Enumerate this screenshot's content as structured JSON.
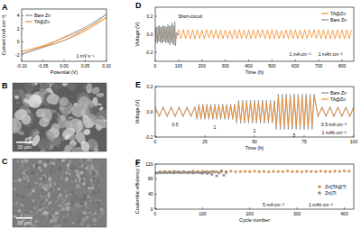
{
  "chart_data": [
    {
      "type": "line",
      "title": "A",
      "x_label": "Potential (V)",
      "y_label": "Current (mA cm⁻²)",
      "x": [
        -0.1,
        -0.08,
        -0.06,
        -0.04,
        -0.02,
        0,
        0.02,
        0.04,
        0.06,
        0.08,
        0.1,
        0.1,
        0.08,
        0.06,
        0.04,
        0.02,
        0,
        -0.02,
        -0.04,
        -0.06,
        -0.08,
        -0.1
      ],
      "series": [
        {
          "name": "Bare Zn",
          "color": "#8c8c8c",
          "values": [
            -1.9,
            -1.5,
            -1.1,
            -0.7,
            -0.3,
            0.2,
            0.8,
            1.5,
            2.3,
            3.2,
            4.2,
            4.2,
            3.4,
            2.6,
            1.9,
            1.3,
            0.7,
            0.1,
            -0.5,
            -1.0,
            -1.5,
            -1.9
          ]
        },
        {
          "name": "TA@Zn",
          "color": "#f28e2b",
          "values": [
            -1.5,
            -1.2,
            -0.9,
            -0.6,
            -0.2,
            0.2,
            0.7,
            1.3,
            2.0,
            2.8,
            3.7,
            3.7,
            3.0,
            2.3,
            1.7,
            1.1,
            0.6,
            0.1,
            -0.4,
            -0.8,
            -1.2,
            -1.5
          ]
        }
      ],
      "xlim": [
        -0.1,
        0.1
      ],
      "xticks": [
        {
          "value": -0.1,
          "label": "-0.10"
        },
        -0.05,
        {
          "value": 0,
          "label": "0.00"
        },
        0.05,
        {
          "value": 0.1,
          "label": "0.10"
        }
      ],
      "ylim": [
        -3,
        5
      ],
      "yticks": [
        -2,
        0,
        2,
        4
      ],
      "legend": "upper left",
      "annotations": [
        {
          "text": "1 mV s⁻¹",
          "x": 0.05,
          "y": -2.2
        }
      ]
    },
    {
      "type": "line",
      "title": "D",
      "x_label": "Time (h)",
      "y_label": "Voltage (V)",
      "series": [
        {
          "name": "TA@Zn",
          "color": "#f28e2b",
          "x": [
            0,
            10,
            20,
            30,
            40,
            50,
            60,
            70,
            80,
            90,
            100,
            110,
            120,
            130,
            140,
            150,
            160,
            170,
            180,
            190,
            200,
            210,
            220,
            230,
            240,
            250,
            260,
            270,
            280,
            290,
            300,
            310,
            320,
            330,
            340,
            350,
            360,
            370,
            380,
            390,
            400,
            410,
            420,
            430,
            440,
            450,
            460,
            470,
            480,
            490,
            500,
            510,
            520,
            530,
            540,
            550,
            560,
            570,
            580,
            590,
            600,
            610,
            620,
            630,
            640,
            650,
            660,
            670,
            680,
            690,
            700,
            710,
            720,
            730,
            740,
            750,
            760,
            770,
            780,
            790,
            800,
            810,
            820,
            830,
            840
          ],
          "values": [
            0.06,
            -0.06,
            0.05,
            -0.05,
            0.05,
            -0.05,
            0.05,
            -0.05,
            0.05,
            -0.05,
            0.05,
            -0.05,
            0.05,
            -0.05,
            0.05,
            -0.05,
            0.05,
            -0.05,
            0.05,
            -0.05,
            0.05,
            -0.05,
            0.05,
            -0.04,
            0.05,
            -0.05,
            0.05,
            -0.05,
            0.05,
            -0.05,
            0.05,
            -0.05,
            0.04,
            -0.05,
            0.05,
            -0.05,
            0.05,
            -0.05,
            0.05,
            -0.05,
            0.05,
            -0.05,
            0.05,
            -0.05,
            0.05,
            -0.04,
            0.05,
            -0.05,
            0.05,
            -0.05,
            0.05,
            -0.05,
            0.05,
            -0.05,
            0.04,
            -0.05,
            0.05,
            -0.05,
            0.05,
            -0.05,
            0.05,
            -0.05,
            0.05,
            -0.05,
            0.05,
            -0.05,
            0.05,
            -0.04,
            0.05,
            -0.05,
            0.05,
            -0.05,
            0.05,
            -0.05,
            0.05,
            -0.05,
            0.05,
            -0.05,
            0.05,
            -0.05,
            0.05,
            -0.05,
            0.05,
            -0.05,
            0.05
          ]
        },
        {
          "name": "Bare Zn",
          "color": "#8c8c8c",
          "x": [
            0,
            3,
            6,
            9,
            12,
            15,
            18,
            21,
            24,
            27,
            30,
            33,
            36,
            39,
            42,
            45,
            48,
            51,
            54,
            57,
            60,
            63,
            66,
            69,
            72,
            75,
            78,
            81,
            84,
            87,
            90,
            93,
            96,
            99
          ],
          "values": [
            0.09,
            -0.09,
            0.08,
            -0.1,
            0.09,
            -0.08,
            0.1,
            -0.09,
            0.08,
            -0.1,
            0.09,
            -0.09,
            0.1,
            -0.08,
            0.09,
            -0.1,
            0.08,
            -0.09,
            0.11,
            -0.1,
            0.09,
            -0.12,
            0.1,
            -0.09,
            0.13,
            -0.11,
            0.1,
            -0.12,
            0.14,
            -0.13,
            0.02,
            -0.01,
            0.01,
            -0.01
          ]
        }
      ],
      "xlim": [
        0,
        850
      ],
      "xticks": [
        0,
        100,
        200,
        300,
        400,
        500,
        600,
        700,
        800
      ],
      "ylim": [
        -0.3,
        0.3
      ],
      "yticks": [
        -0.2,
        {
          "value": 0,
          "label": "0.0"
        },
        0.2
      ],
      "legend": "upper right",
      "annotations": [
        {
          "text": "Short-circuit",
          "x": 150,
          "y": 0.2
        },
        {
          "text": "1 mA cm⁻²",
          "x": 620,
          "y": -0.22
        },
        {
          "text": "1 mAh cm⁻²",
          "x": 750,
          "y": -0.22
        }
      ]
    },
    {
      "type": "line",
      "title": "E",
      "x_label": "Time (h)",
      "y_label": "Voltage (V)",
      "x": [
        0,
        2,
        4,
        6,
        8,
        10,
        12,
        14,
        16,
        18,
        20,
        21,
        22,
        23,
        24,
        25,
        26,
        27,
        28,
        29,
        30,
        31,
        32,
        33,
        34,
        35,
        36,
        37,
        38,
        39,
        40,
        41,
        42,
        43,
        44,
        45,
        46,
        47,
        48,
        49,
        50,
        51,
        52,
        53,
        54,
        55,
        56,
        57,
        58,
        59,
        60,
        61,
        62,
        63,
        64,
        65,
        66,
        67,
        68,
        69,
        70,
        71,
        72,
        73,
        74,
        75,
        76,
        77,
        78,
        79,
        80,
        82,
        84,
        86,
        88,
        90,
        92,
        94,
        96,
        98,
        100
      ],
      "series": [
        {
          "name": "Bare Zn",
          "color": "#8c8c8c",
          "values": [
            0.04,
            -0.04,
            0.04,
            -0.04,
            0.04,
            -0.04,
            0.04,
            -0.04,
            0.04,
            -0.04,
            0.04,
            -0.06,
            0.06,
            -0.06,
            0.06,
            -0.06,
            0.06,
            -0.06,
            0.06,
            -0.06,
            0.06,
            -0.06,
            0.06,
            -0.06,
            0.06,
            -0.06,
            0.06,
            -0.06,
            0.06,
            -0.06,
            0.06,
            -0.09,
            0.09,
            -0.09,
            0.09,
            -0.09,
            0.09,
            -0.09,
            0.09,
            -0.09,
            0.09,
            -0.09,
            0.09,
            -0.09,
            0.09,
            -0.09,
            0.09,
            -0.09,
            0.09,
            -0.09,
            0.09,
            -0.14,
            0.14,
            -0.14,
            0.14,
            -0.14,
            0.14,
            -0.14,
            0.14,
            -0.14,
            0.14,
            -0.14,
            0.14,
            -0.14,
            0.14,
            -0.14,
            0.14,
            -0.14,
            0.14,
            -0.14,
            0.14,
            -0.04,
            0.04,
            -0.04,
            0.04,
            -0.04,
            0.04,
            -0.04,
            0.04,
            -0.04,
            0.04
          ]
        },
        {
          "name": "TA@Zn",
          "color": "#f28e2b",
          "values": [
            0.03,
            -0.03,
            0.03,
            -0.03,
            0.03,
            -0.03,
            0.03,
            -0.03,
            0.03,
            -0.03,
            0.03,
            -0.045,
            0.045,
            -0.045,
            0.045,
            -0.045,
            0.045,
            -0.045,
            0.045,
            -0.045,
            0.045,
            -0.045,
            0.045,
            -0.045,
            0.045,
            -0.045,
            0.045,
            -0.045,
            0.045,
            -0.045,
            0.045,
            -0.07,
            0.07,
            -0.07,
            0.07,
            -0.07,
            0.07,
            -0.07,
            0.07,
            -0.07,
            0.07,
            -0.07,
            0.07,
            -0.07,
            0.07,
            -0.07,
            0.07,
            -0.07,
            0.07,
            -0.07,
            0.07,
            -0.11,
            0.11,
            -0.11,
            0.11,
            -0.11,
            0.11,
            -0.11,
            0.11,
            -0.11,
            0.11,
            -0.11,
            0.11,
            -0.11,
            0.11,
            -0.11,
            0.11,
            -0.11,
            0.11,
            -0.11,
            0.11,
            -0.03,
            0.03,
            -0.03,
            0.03,
            -0.03,
            0.03,
            -0.03,
            0.03,
            -0.03,
            0.03
          ]
        }
      ],
      "xlim": [
        0,
        100
      ],
      "xticks": [
        0,
        25,
        50,
        75,
        100
      ],
      "ylim": [
        -0.2,
        0.2
      ],
      "yticks": [
        -0.2,
        {
          "value": 0,
          "label": "0.0"
        },
        0.2
      ],
      "legend": "upper right",
      "annotations": [
        {
          "text": "0.5",
          "x": 10,
          "y": -0.1
        },
        {
          "text": "1",
          "x": 30,
          "y": -0.12
        },
        {
          "text": "2",
          "x": 50,
          "y": -0.15
        },
        {
          "text": "5",
          "x": 70,
          "y": -0.185
        },
        {
          "text": "0.5 mA cm⁻²",
          "x": 90,
          "y": -0.1
        },
        {
          "text": "1 mAh cm⁻²",
          "x": 90,
          "y": -0.165
        }
      ]
    },
    {
      "type": "scatter",
      "title": "F",
      "x_label": "Cycle number",
      "y_label": "Coulombic efficiency (%)",
      "series": [
        {
          "name": "Zn||TA@Ti",
          "color": "#f28e2b",
          "marker": "circle",
          "x": [
            0,
            10,
            20,
            30,
            40,
            50,
            60,
            70,
            80,
            90,
            100,
            110,
            120,
            130,
            140,
            150,
            160,
            170,
            180,
            190,
            200,
            210,
            220,
            230,
            240,
            250,
            260,
            270,
            280,
            290,
            300,
            310,
            320,
            330,
            340,
            350,
            360,
            370,
            380,
            390,
            400,
            410
          ],
          "values": [
            97,
            99.5,
            100.2,
            99.8,
            100.5,
            99.6,
            100.1,
            99.3,
            100.8,
            99.9,
            100.3,
            99.7,
            100.6,
            99.4,
            100.2,
            99.8,
            100.9,
            99.5,
            100.1,
            100.4,
            99.6,
            100.7,
            99.9,
            100.3,
            99.2,
            100.5,
            100,
            99.7,
            101.2,
            99.8,
            100.4,
            99.5,
            100.8,
            100.1,
            99.6,
            101,
            100.2,
            99.7,
            100.9,
            100.3,
            101.5,
            100.6
          ]
        },
        {
          "name": "Zn||Ti",
          "color": "#8c8c8c",
          "marker": "circle",
          "x": [
            0,
            5,
            10,
            15,
            20,
            25,
            30,
            35,
            40,
            45,
            50,
            55,
            60,
            65,
            70,
            75,
            80,
            85,
            90,
            95,
            100,
            105,
            110,
            115,
            120,
            125,
            130,
            135,
            140,
            145,
            150
          ],
          "values": [
            95,
            96.5,
            97.2,
            96.8,
            97.5,
            96.9,
            97.8,
            97.1,
            96.5,
            97.9,
            97.2,
            96.4,
            98,
            97.5,
            96.8,
            97.7,
            96.2,
            97.4,
            98.1,
            96.9,
            95.5,
            98.6,
            94.8,
            97.9,
            92.5,
            99.1,
            88.6,
            96.4,
            101.8,
            90.3,
            97.5
          ]
        }
      ],
      "xlim": [
        0,
        420
      ],
      "xticks": [
        0,
        100,
        200,
        300,
        400
      ],
      "ylim": [
        0,
        120
      ],
      "yticks": [
        0,
        40,
        80,
        120
      ],
      "legend": "right",
      "annotations": [
        {
          "text": "5 mA cm⁻²",
          "x": 250,
          "y": 12
        },
        {
          "text": "1 mAh cm⁻²",
          "x": 350,
          "y": 12
        }
      ]
    }
  ],
  "images": [
    {
      "label": "B",
      "scale_bar": "20 μm"
    },
    {
      "label": "C",
      "scale_bar": "20 μm"
    }
  ]
}
